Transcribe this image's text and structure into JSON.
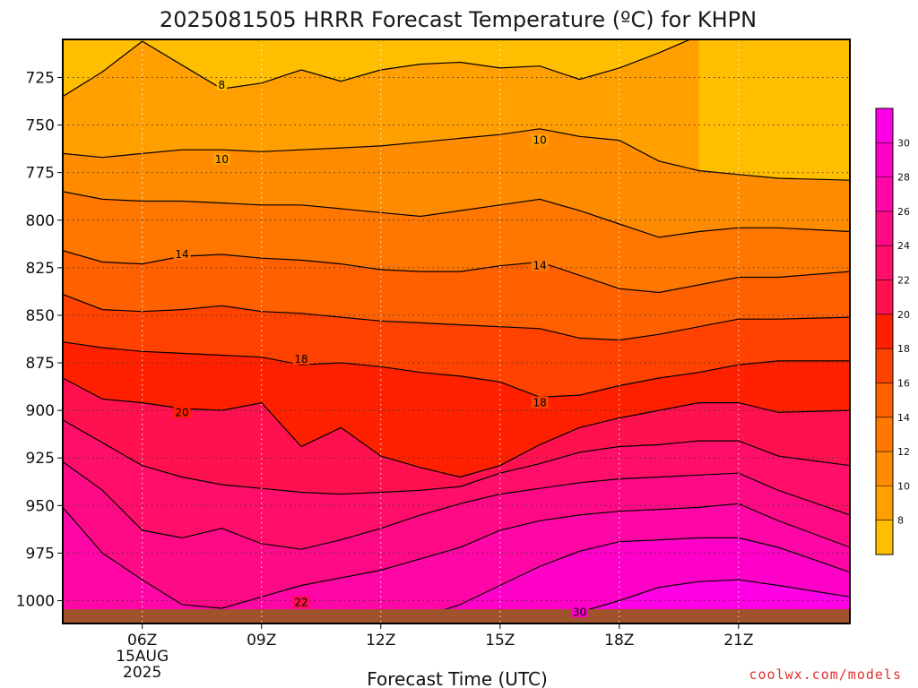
{
  "title": "2025081505 HRRR Forecast Temperature (ºC) for KHPN",
  "credit": "coolwx.com/models",
  "chart_data": {
    "type": "heatmap",
    "title": "2025081505 HRRR Forecast Temperature (ºC) for KHPN",
    "xlabel": "Forecast Time (UTC)",
    "ylabel": "",
    "x_range_hours_utc": [
      4.0,
      23.8
    ],
    "y_range_hPa": [
      705,
      1012
    ],
    "y_scale": "linear, inverted (pressure)",
    "x_tick_labels": [
      "06Z\n15AUG\n2025",
      "09Z",
      "12Z",
      "15Z",
      "18Z",
      "21Z"
    ],
    "x_tick_hours": [
      6,
      9,
      12,
      15,
      18,
      21
    ],
    "y_ticks": [
      725,
      750,
      775,
      800,
      825,
      850,
      875,
      900,
      925,
      950,
      975,
      1000
    ],
    "grid": "dotted",
    "colorbar": {
      "position": "right",
      "levels": [
        8,
        10,
        12,
        14,
        16,
        18,
        20,
        22,
        24,
        26,
        28,
        30
      ],
      "colors": [
        "#ffbe00",
        "#ff9f00",
        "#ff8c00",
        "#ff7700",
        "#ff6000",
        "#ff4200",
        "#ff2000",
        "#ff1150",
        "#ff0e6a",
        "#ff0a86",
        "#ff06a6",
        "#ff00c8",
        "#ff00e6"
      ]
    },
    "contour_interval": 2,
    "contour_labels": [
      {
        "value": "8",
        "hour": 8.0,
        "hPa": 729
      },
      {
        "value": "10",
        "hour": 8.0,
        "hPa": 768
      },
      {
        "value": "10",
        "hour": 16.0,
        "hPa": 758
      },
      {
        "value": "14",
        "hour": 7.0,
        "hPa": 818
      },
      {
        "value": "14",
        "hour": 16.0,
        "hPa": 824
      },
      {
        "value": "18",
        "hour": 10.0,
        "hPa": 873
      },
      {
        "value": "18",
        "hour": 16.0,
        "hPa": 896
      },
      {
        "value": "20",
        "hour": 7.0,
        "hPa": 901
      },
      {
        "value": "22",
        "hour": 10.0,
        "hPa": 1001
      },
      {
        "value": "30",
        "hour": 17.0,
        "hPa": 1006
      }
    ],
    "contours": [
      {
        "level": 8,
        "points": [
          [
            4.0,
            735
          ],
          [
            5.0,
            722
          ],
          [
            6.0,
            706
          ],
          [
            8.0,
            731
          ],
          [
            9.0,
            728
          ],
          [
            10.0,
            721
          ],
          [
            11.0,
            727
          ],
          [
            12.0,
            721
          ],
          [
            13.0,
            718
          ],
          [
            14.0,
            717
          ],
          [
            15.0,
            720
          ],
          [
            16.0,
            719
          ],
          [
            17.0,
            726
          ],
          [
            18.0,
            720
          ],
          [
            19.0,
            712
          ],
          [
            20.0,
            703
          ]
        ]
      },
      {
        "level": 10,
        "points": [
          [
            4.0,
            765
          ],
          [
            5.0,
            767
          ],
          [
            6.0,
            765
          ],
          [
            7.0,
            763
          ],
          [
            8.0,
            763
          ],
          [
            9.0,
            764
          ],
          [
            10.0,
            763
          ],
          [
            11.0,
            762
          ],
          [
            12.0,
            761
          ],
          [
            13.0,
            759
          ],
          [
            14.0,
            757
          ],
          [
            15.0,
            755
          ],
          [
            16.0,
            752
          ],
          [
            17.0,
            756
          ],
          [
            18.0,
            758
          ],
          [
            19.0,
            769
          ],
          [
            20.0,
            774
          ],
          [
            21.0,
            776
          ],
          [
            22.0,
            778
          ],
          [
            23.8,
            779
          ]
        ]
      },
      {
        "level": 12,
        "points": [
          [
            4.0,
            785
          ],
          [
            5.0,
            789
          ],
          [
            6.0,
            790
          ],
          [
            7.0,
            790
          ],
          [
            8.0,
            791
          ],
          [
            9.0,
            792
          ],
          [
            10.0,
            792
          ],
          [
            11.0,
            794
          ],
          [
            12.0,
            796
          ],
          [
            13.0,
            798
          ],
          [
            14.0,
            795
          ],
          [
            15.0,
            792
          ],
          [
            16.0,
            789
          ],
          [
            17.0,
            795
          ],
          [
            18.0,
            802
          ],
          [
            19.0,
            809
          ],
          [
            20.0,
            806
          ],
          [
            21.0,
            804
          ],
          [
            22.0,
            804
          ],
          [
            23.8,
            806
          ]
        ]
      },
      {
        "level": 14,
        "points": [
          [
            4.0,
            816
          ],
          [
            5.0,
            822
          ],
          [
            6.0,
            823
          ],
          [
            7.0,
            819
          ],
          [
            8.0,
            818
          ],
          [
            9.0,
            820
          ],
          [
            10.0,
            821
          ],
          [
            11.0,
            823
          ],
          [
            12.0,
            826
          ],
          [
            13.0,
            827
          ],
          [
            14.0,
            827
          ],
          [
            15.0,
            824
          ],
          [
            16.0,
            822
          ],
          [
            17.0,
            829
          ],
          [
            18.0,
            836
          ],
          [
            19.0,
            838
          ],
          [
            20.0,
            834
          ],
          [
            21.0,
            830
          ],
          [
            22.0,
            830
          ],
          [
            23.8,
            827
          ]
        ]
      },
      {
        "level": 16,
        "points": [
          [
            4.0,
            839
          ],
          [
            5.0,
            847
          ],
          [
            6.0,
            848
          ],
          [
            7.0,
            847
          ],
          [
            8.0,
            845
          ],
          [
            9.0,
            848
          ],
          [
            10.0,
            849
          ],
          [
            11.0,
            851
          ],
          [
            12.0,
            853
          ],
          [
            13.0,
            854
          ],
          [
            14.0,
            855
          ],
          [
            15.0,
            856
          ],
          [
            16.0,
            857
          ],
          [
            17.0,
            862
          ],
          [
            18.0,
            863
          ],
          [
            19.0,
            860
          ],
          [
            20.0,
            856
          ],
          [
            21.0,
            852
          ],
          [
            22.0,
            852
          ],
          [
            23.8,
            851
          ]
        ]
      },
      {
        "level": 18,
        "points": [
          [
            4.0,
            864
          ],
          [
            5.0,
            867
          ],
          [
            6.0,
            869
          ],
          [
            7.0,
            870
          ],
          [
            8.0,
            871
          ],
          [
            9.0,
            872
          ],
          [
            10.0,
            876
          ],
          [
            11.0,
            875
          ],
          [
            12.0,
            877
          ],
          [
            13.0,
            880
          ],
          [
            14.0,
            882
          ],
          [
            15.0,
            885
          ],
          [
            16.0,
            893
          ],
          [
            17.0,
            892
          ],
          [
            18.0,
            887
          ],
          [
            19.0,
            883
          ],
          [
            20.0,
            880
          ],
          [
            21.0,
            876
          ],
          [
            22.0,
            874
          ],
          [
            23.8,
            874
          ]
        ]
      },
      {
        "level": 20,
        "points": [
          [
            4.0,
            883
          ],
          [
            5.0,
            894
          ],
          [
            6.0,
            896
          ],
          [
            7.0,
            899
          ],
          [
            8.0,
            900
          ],
          [
            9.0,
            896
          ],
          [
            10.0,
            919
          ],
          [
            11.0,
            909
          ],
          [
            12.0,
            924
          ],
          [
            13.0,
            930
          ],
          [
            14.0,
            935
          ],
          [
            15.0,
            929
          ],
          [
            16.0,
            918
          ],
          [
            17.0,
            909
          ],
          [
            18.0,
            904
          ],
          [
            19.0,
            900
          ],
          [
            20.0,
            896
          ],
          [
            21.0,
            896
          ],
          [
            22.0,
            901
          ],
          [
            23.8,
            900
          ]
        ]
      },
      {
        "level": 22,
        "points": [
          [
            4.0,
            905
          ],
          [
            5.0,
            917
          ],
          [
            6.0,
            929
          ],
          [
            7.0,
            935
          ],
          [
            8.0,
            939
          ],
          [
            9.0,
            941
          ],
          [
            10.0,
            943
          ],
          [
            11.0,
            944
          ],
          [
            12.0,
            943
          ],
          [
            13.0,
            942
          ],
          [
            14.0,
            940
          ],
          [
            15.0,
            933
          ],
          [
            16.0,
            928
          ],
          [
            17.0,
            922
          ],
          [
            18.0,
            919
          ],
          [
            19.0,
            918
          ],
          [
            20.0,
            916
          ],
          [
            21.0,
            916
          ],
          [
            22.0,
            924
          ],
          [
            23.8,
            929
          ]
        ]
      },
      {
        "level": 24,
        "points": [
          [
            4.0,
            927
          ],
          [
            5.0,
            942
          ],
          [
            6.0,
            963
          ],
          [
            7.0,
            967
          ],
          [
            8.0,
            962
          ],
          [
            9.0,
            970
          ],
          [
            10.0,
            973
          ],
          [
            11.0,
            968
          ],
          [
            12.0,
            962
          ],
          [
            13.0,
            955
          ],
          [
            14.0,
            949
          ],
          [
            15.0,
            944
          ],
          [
            16.0,
            941
          ],
          [
            17.0,
            938
          ],
          [
            18.0,
            936
          ],
          [
            19.0,
            935
          ],
          [
            20.0,
            934
          ],
          [
            21.0,
            933
          ],
          [
            22.0,
            942
          ],
          [
            23.8,
            955
          ]
        ]
      },
      {
        "level": 26,
        "points": [
          [
            4.0,
            951
          ],
          [
            5.0,
            975
          ],
          [
            6.0,
            989
          ],
          [
            7.0,
            1002
          ],
          [
            8.0,
            1004
          ],
          [
            9.0,
            998
          ],
          [
            10.0,
            992
          ],
          [
            11.0,
            988
          ],
          [
            12.0,
            984
          ],
          [
            13.0,
            978
          ],
          [
            14.0,
            972
          ],
          [
            15.0,
            963
          ],
          [
            16.0,
            958
          ],
          [
            17.0,
            955
          ],
          [
            18.0,
            953
          ],
          [
            19.0,
            952
          ],
          [
            20.0,
            951
          ],
          [
            21.0,
            949
          ],
          [
            22.0,
            958
          ],
          [
            23.8,
            972
          ]
        ]
      },
      {
        "level": 28,
        "points": [
          [
            13.0,
            1009
          ],
          [
            14.0,
            1002
          ],
          [
            15.0,
            992
          ],
          [
            16.0,
            982
          ],
          [
            17.0,
            974
          ],
          [
            18.0,
            969
          ],
          [
            19.0,
            968
          ],
          [
            20.0,
            967
          ],
          [
            21.0,
            967
          ],
          [
            22.0,
            972
          ],
          [
            23.8,
            985
          ]
        ]
      },
      {
        "level": 30,
        "points": [
          [
            17.0,
            1006
          ],
          [
            18.0,
            1000
          ],
          [
            19.0,
            993
          ],
          [
            20.0,
            990
          ],
          [
            21.0,
            989
          ],
          [
            22.0,
            992
          ],
          [
            23.8,
            998
          ]
        ]
      }
    ]
  }
}
